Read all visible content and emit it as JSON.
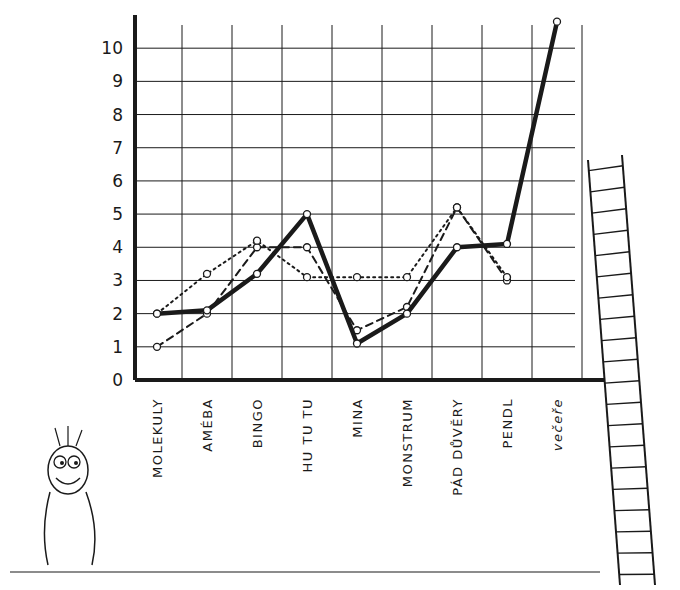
{
  "chart_data": {
    "type": "line",
    "categories": [
      "MOLEKULY",
      "AMÉBA",
      "BINGO",
      "HU TU TU",
      "MINA",
      "MONSTRUM",
      "PÁD DŮVĚRY",
      "PENDL",
      "večeře"
    ],
    "series": [
      {
        "color": "#1a1a1a",
        "line_style": "solid",
        "marker": "circle",
        "values": [
          2,
          2.1,
          3.2,
          5,
          1.1,
          2,
          4,
          4.1,
          10.8
        ]
      },
      {
        "color": "#1a1a1a",
        "line_style": "dotted",
        "marker": "circle",
        "values": [
          2,
          3.2,
          4.2,
          3.1,
          3.1,
          3.1,
          5.2,
          3.1,
          null
        ]
      },
      {
        "color": "#1a1a1a",
        "line_style": "dashed",
        "marker": "circle",
        "values": [
          1,
          2,
          4,
          4,
          1.5,
          2.2,
          5.2,
          3,
          null
        ]
      }
    ],
    "ylim": [
      0,
      11
    ],
    "yticks": [
      0,
      1,
      2,
      3,
      4,
      5,
      6,
      7,
      8,
      9,
      10
    ],
    "grid": true
  }
}
